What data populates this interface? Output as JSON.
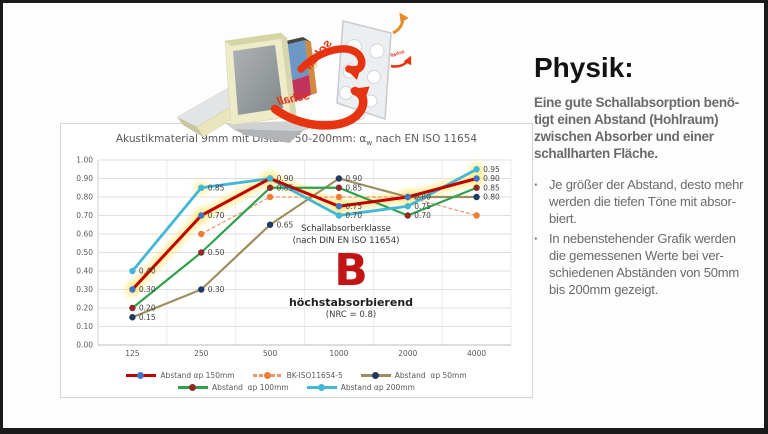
{
  "illustration": {
    "arrow_label": "schall",
    "accent_red": "#e5340f",
    "accent_orange": "#e88d26"
  },
  "chart_data": {
    "type": "line",
    "title": {
      "prefix": "Akustikmaterial 9mm mit Distanz 50-200mm: α",
      "sub": "w",
      "suffix": " nach EN ISO 11654"
    },
    "categories": [
      "125",
      "250",
      "500",
      "1000",
      "2000",
      "4000"
    ],
    "ylim": [
      0,
      1
    ],
    "yticks": [
      "1.00",
      "0.90",
      "0.80",
      "0.70",
      "0.60",
      "0.50",
      "0.40",
      "0.30",
      "0.20",
      "0.10",
      "0.00"
    ],
    "grid": true,
    "legend_position": "bottom",
    "highlight_color": "#ffe97a",
    "series": [
      {
        "name": "Abstand αp 150mm",
        "line_color": "#c00000",
        "marker_color": "#4472c4",
        "width": 3,
        "values": [
          0.3,
          0.7,
          0.9,
          0.75,
          0.8,
          0.9
        ],
        "labels": [
          "0.30",
          "0.70",
          null,
          "0.75",
          null,
          "0.90"
        ],
        "highlight": true
      },
      {
        "name": "BK-ISO11654-5",
        "line_color": "#f0946b",
        "marker_color": "#ed7d31",
        "width": 1.2,
        "dash": "4 2",
        "values": [
          null,
          0.6,
          0.8,
          0.8,
          0.8,
          0.7
        ],
        "labels": [
          null,
          null,
          null,
          null,
          null,
          null
        ]
      },
      {
        "name": "Abstand  αp 50mm",
        "line_color": "#9c8f5f",
        "marker_color": "#1f3864",
        "width": 2.2,
        "values": [
          0.15,
          0.3,
          0.65,
          0.9,
          0.8,
          0.8
        ],
        "labels": [
          "0.15",
          "0.30",
          "0.65",
          "0.90",
          "0.80",
          "0.80"
        ]
      },
      {
        "name": "Abstand  αp 100mm",
        "line_color": "#2fa04c",
        "marker_color": "#8f2a25",
        "width": 2.2,
        "values": [
          0.2,
          0.5,
          0.85,
          0.85,
          0.7,
          0.85
        ],
        "labels": [
          "0.20",
          "0.50",
          "0.85",
          "0.85",
          "0.70",
          "0.85"
        ]
      },
      {
        "name": "Abstand αp 200mm",
        "line_color": "#41b8d5",
        "marker_color": "#41b8d5",
        "width": 2.8,
        "values": [
          0.4,
          0.85,
          0.9,
          0.7,
          0.75,
          0.95
        ],
        "labels": [
          "0.40",
          "0.85",
          "0.90",
          "0.70",
          "0.75",
          "0.95"
        ]
      }
    ],
    "annotations": {
      "klasse_line1": "Schallabsorberklasse",
      "klasse_line2": "(nach DIN EN ISO 11654)",
      "class_letter": "B",
      "class_label": "höchstabsorbierend",
      "class_nrc": "(NRC = 0.8)"
    }
  },
  "right_panel": {
    "heading": "Physik:",
    "intro": "Eine gute Schallabsorption benö-\ntigt einen Abstand (Hohlraum)\nzwischen Absorber und einer\nschallharten Fläche.",
    "bullets": [
      {
        "marker": "·",
        "text": "Je größer der Abstand, desto mehr\nwerden die tiefen Töne mit absor-\nbiert."
      },
      {
        "marker": "·",
        "text": "In nebenstehender Grafik werden\ndie gemessenen Werte bei ver-\nschiedenen Abständen von 50mm\nbis 200mm gezeigt."
      }
    ]
  }
}
